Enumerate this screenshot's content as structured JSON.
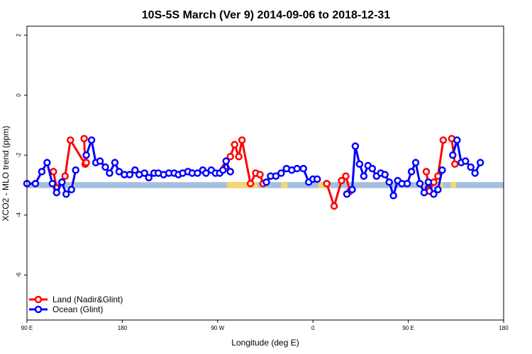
{
  "chart_data": {
    "type": "line",
    "title": "10S-5S March (Ver 9)   2014-09-06 to 2018-12-31",
    "xlabel": "Longitude (deg E)",
    "ylabel": "XCO2 - MLO trend (ppm)",
    "xlim": [
      90,
      540
    ],
    "ylim": [
      -7.5,
      2.3
    ],
    "x_ticks": [
      {
        "value": 90,
        "label": "90 E"
      },
      {
        "value": 180,
        "label": "180"
      },
      {
        "value": 270,
        "label": "90 W"
      },
      {
        "value": 360,
        "label": "0"
      },
      {
        "value": 450,
        "label": "90 E"
      },
      {
        "value": 540,
        "label": "180"
      }
    ],
    "y_ticks": [
      {
        "value": 2,
        "label": "2"
      },
      {
        "value": 0,
        "label": "0"
      },
      {
        "value": -2,
        "label": "-2"
      },
      {
        "value": -4,
        "label": "-4"
      },
      {
        "value": -6,
        "label": "-6"
      }
    ],
    "legend": {
      "placement": "bottom-left",
      "entries": [
        {
          "label": "Land (Nadir&Glint)",
          "color": "#ff0000"
        },
        {
          "label": "Ocean (Glint)",
          "color": "#0000ff"
        }
      ]
    },
    "series": [
      {
        "name": "Land (Nadir&Glint)",
        "color": "#ff0000",
        "segments": [
          [
            [
              115,
              -2.55
            ],
            [
              118,
              -3.1
            ],
            [
              126,
              -2.7
            ],
            [
              131,
              -1.5
            ],
            [
              145,
              -2.3
            ]
          ],
          [
            [
              144,
              -1.45
            ],
            [
              145,
              -2.3
            ]
          ],
          [
            [
              146,
              -2.25
            ]
          ],
          [
            [
              277,
              -2.4
            ],
            [
              282,
              -2.05
            ],
            [
              286,
              -1.65
            ],
            [
              290,
              -2.05
            ],
            [
              293,
              -1.5
            ],
            [
              301,
              -2.95
            ],
            [
              306,
              -2.6
            ],
            [
              310,
              -2.65
            ],
            [
              313,
              -2.95
            ]
          ],
          [
            [
              373,
              -2.95
            ],
            [
              380,
              -3.7
            ],
            [
              387,
              -2.85
            ],
            [
              391,
              -2.7
            ],
            [
              395,
              -3.2
            ]
          ],
          [
            [
              467,
              -2.55
            ],
            [
              470,
              -3.2
            ],
            [
              474,
              -2.9
            ],
            [
              478,
              -2.7
            ],
            [
              483,
              -1.5
            ]
          ],
          [
            [
              491,
              -1.45
            ],
            [
              494,
              -2.3
            ]
          ]
        ]
      },
      {
        "name": "Ocean (Glint)",
        "color": "#0000ff",
        "segments": [
          [
            [
              90,
              -2.95
            ],
            [
              98,
              -2.95
            ],
            [
              104,
              -2.55
            ],
            [
              109,
              -2.25
            ],
            [
              114,
              -2.95
            ],
            [
              118,
              -3.25
            ],
            [
              123,
              -2.9
            ],
            [
              127,
              -3.3
            ],
            [
              132,
              -3.15
            ],
            [
              136,
              -2.5
            ]
          ],
          [
            [
              146,
              -2.0
            ],
            [
              151,
              -1.5
            ],
            [
              155,
              -2.25
            ],
            [
              159,
              -2.2
            ],
            [
              164,
              -2.4
            ],
            [
              168,
              -2.6
            ],
            [
              173,
              -2.25
            ],
            [
              177,
              -2.55
            ],
            [
              182,
              -2.65
            ],
            [
              187,
              -2.65
            ],
            [
              192,
              -2.5
            ],
            [
              196,
              -2.65
            ],
            [
              201,
              -2.6
            ],
            [
              205,
              -2.75
            ],
            [
              210,
              -2.6
            ],
            [
              214,
              -2.6
            ],
            [
              219,
              -2.65
            ],
            [
              224,
              -2.6
            ],
            [
              229,
              -2.6
            ],
            [
              233,
              -2.65
            ],
            [
              237,
              -2.6
            ],
            [
              242,
              -2.55
            ],
            [
              246,
              -2.6
            ],
            [
              251,
              -2.6
            ],
            [
              256,
              -2.5
            ],
            [
              259,
              -2.6
            ],
            [
              264,
              -2.5
            ],
            [
              268,
              -2.6
            ],
            [
              272,
              -2.6
            ],
            [
              275,
              -2.5
            ],
            [
              278,
              -2.2
            ],
            [
              282,
              -2.55
            ]
          ],
          [
            [
              316,
              -2.9
            ],
            [
              320,
              -2.7
            ],
            [
              325,
              -2.7
            ],
            [
              330,
              -2.6
            ],
            [
              335,
              -2.45
            ],
            [
              340,
              -2.5
            ],
            [
              345,
              -2.45
            ],
            [
              351,
              -2.45
            ],
            [
              356,
              -2.9
            ],
            [
              360,
              -2.8
            ],
            [
              364,
              -2.8
            ]
          ],
          [
            [
              392,
              -3.3
            ],
            [
              397,
              -3.15
            ],
            [
              400,
              -1.7
            ],
            [
              404,
              -2.3
            ],
            [
              408,
              -2.7
            ],
            [
              412,
              -2.35
            ],
            [
              416,
              -2.45
            ],
            [
              420,
              -2.7
            ],
            [
              424,
              -2.6
            ],
            [
              428,
              -2.65
            ],
            [
              432,
              -2.9
            ],
            [
              436,
              -3.35
            ],
            [
              440,
              -2.85
            ],
            [
              444,
              -2.95
            ],
            [
              449,
              -2.95
            ],
            [
              453,
              -2.55
            ],
            [
              457,
              -2.25
            ],
            [
              461,
              -2.95
            ],
            [
              465,
              -3.25
            ],
            [
              469,
              -2.9
            ],
            [
              474,
              -3.3
            ],
            [
              478,
              -3.15
            ],
            [
              482,
              -2.5
            ]
          ],
          [
            [
              492,
              -2.0
            ],
            [
              496,
              -1.5
            ],
            [
              500,
              -2.25
            ],
            [
              504,
              -2.2
            ],
            [
              509,
              -2.4
            ],
            [
              513,
              -2.6
            ],
            [
              518,
              -2.25
            ]
          ]
        ]
      }
    ],
    "land_ocean_strip": {
      "y_range": [
        -2.9,
        -3.1
      ],
      "ocean_color": "#a4bfe0",
      "land_color": "#f5d66e",
      "land_segments": [
        [
          113,
          117
        ],
        [
          131,
          135
        ],
        [
          279,
          303
        ],
        [
          303,
          308
        ],
        [
          330,
          336
        ],
        [
          365,
          375
        ],
        [
          461,
          465
        ],
        [
          478,
          483
        ],
        [
          490,
          495
        ]
      ]
    }
  }
}
